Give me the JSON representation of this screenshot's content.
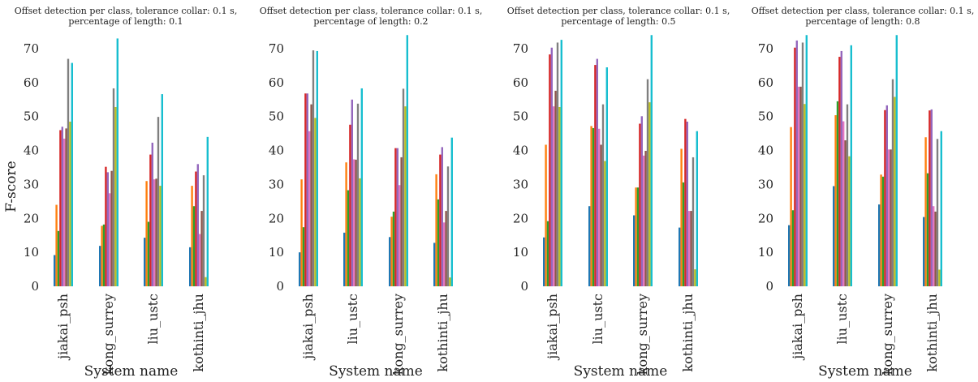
{
  "colors": [
    "#1f77b4",
    "#ff7f0e",
    "#2ca02c",
    "#d62728",
    "#9467bd",
    "#e377c2",
    "#8c564b",
    "#7f7f7f",
    "#bcbd22",
    "#17becf"
  ],
  "chart_data": [
    {
      "type": "bar",
      "title": [
        "Offset detection per class, tolerance collar: 0.1 s,",
        "percentage of length: 0.1"
      ],
      "xlabel": "System name",
      "ylabel": "F-score",
      "ylim": [
        0,
        73
      ],
      "yticks": [
        "0",
        "10",
        "20",
        "30",
        "40",
        "50",
        "60",
        "70"
      ],
      "grid": false,
      "categories": [
        "jiakai_psh",
        "kong_surrey",
        "liu_ustc",
        "kothinti_jhu"
      ],
      "groups": [
        [
          9.2,
          24.0,
          16.3,
          46.0,
          47.0,
          43.5,
          46.5,
          67.0,
          48.5,
          65.8
        ],
        [
          11.9,
          17.8,
          18.2,
          35.2,
          33.6,
          27.4,
          34.0,
          58.3,
          52.8,
          73.0
        ],
        [
          14.3,
          31.0,
          19.0,
          38.8,
          42.3,
          31.5,
          31.7,
          49.9,
          29.6,
          56.6
        ],
        [
          11.5,
          29.6,
          23.6,
          33.8,
          36.0,
          15.4,
          22.2,
          32.7,
          2.7,
          44.0
        ]
      ]
    },
    {
      "type": "bar",
      "title": [
        "Offset detection per class, tolerance collar: 0.1 s,",
        "percentage of length: 0.2"
      ],
      "xlabel": "System name",
      "ylabel": "",
      "ylim": [
        0,
        74
      ],
      "yticks": [
        "0",
        "10",
        "20",
        "30",
        "40",
        "50",
        "60",
        "70"
      ],
      "grid": false,
      "categories": [
        "jiakai_psh",
        "liu_ustc",
        "kong_surrey",
        "kothinti_jhu"
      ],
      "groups": [
        [
          10.0,
          31.5,
          17.4,
          56.8,
          56.8,
          45.7,
          53.6,
          69.5,
          49.6,
          69.3
        ],
        [
          15.8,
          36.5,
          28.3,
          47.6,
          55.0,
          37.4,
          37.3,
          53.8,
          31.8,
          58.3
        ],
        [
          14.5,
          20.5,
          22.0,
          40.7,
          40.7,
          29.8,
          38.0,
          58.2,
          53.0,
          74.0
        ],
        [
          12.8,
          33.0,
          25.6,
          38.8,
          41.0,
          18.8,
          22.2,
          35.3,
          2.6,
          43.8
        ]
      ]
    },
    {
      "type": "bar",
      "title": [
        "Offset detection per class, tolerance collar: 0.1 s,",
        "percentage of length: 0.5"
      ],
      "xlabel": "System name",
      "ylabel": "",
      "ylim": [
        0,
        74
      ],
      "yticks": [
        "0",
        "10",
        "20",
        "30",
        "40",
        "50",
        "60",
        "70"
      ],
      "grid": false,
      "categories": [
        "jiakai_psh",
        "liu_ustc",
        "kong_surrey",
        "kothinti_jhu"
      ],
      "groups": [
        [
          14.4,
          41.7,
          19.2,
          68.3,
          70.3,
          53.0,
          57.6,
          71.8,
          52.8,
          72.6
        ],
        [
          23.6,
          47.2,
          46.6,
          65.2,
          67.0,
          46.4,
          41.7,
          53.6,
          36.9,
          64.5
        ],
        [
          20.9,
          29.1,
          29.1,
          47.9,
          50.1,
          38.5,
          39.9,
          61.0,
          54.2,
          74.0
        ],
        [
          17.3,
          40.5,
          30.6,
          49.3,
          48.5,
          22.2,
          22.2,
          38.0,
          5.0,
          45.7
        ]
      ]
    },
    {
      "type": "bar",
      "title": [
        "Offset detection per class, tolerance collar: 0.1 s,",
        "percentage of length: 0.8"
      ],
      "xlabel": "System name",
      "ylabel": "",
      "ylim": [
        0,
        74
      ],
      "yticks": [
        "0",
        "10",
        "20",
        "30",
        "40",
        "50",
        "60",
        "70"
      ],
      "grid": false,
      "categories": [
        "jiakai_psh",
        "liu_ustc",
        "kong_surrey",
        "kothinti_jhu"
      ],
      "groups": [
        [
          18.0,
          46.9,
          22.4,
          70.3,
          72.4,
          58.8,
          58.8,
          71.8,
          53.7,
          74.0
        ],
        [
          29.5,
          50.4,
          54.5,
          67.6,
          69.3,
          48.6,
          43.0,
          53.6,
          38.3,
          71.0
        ],
        [
          24.1,
          32.9,
          32.3,
          51.9,
          53.3,
          40.3,
          40.3,
          61.0,
          55.8,
          74.0
        ],
        [
          20.4,
          43.9,
          33.3,
          51.8,
          52.1,
          23.6,
          22.0,
          43.4,
          4.9,
          45.7
        ]
      ]
    }
  ]
}
